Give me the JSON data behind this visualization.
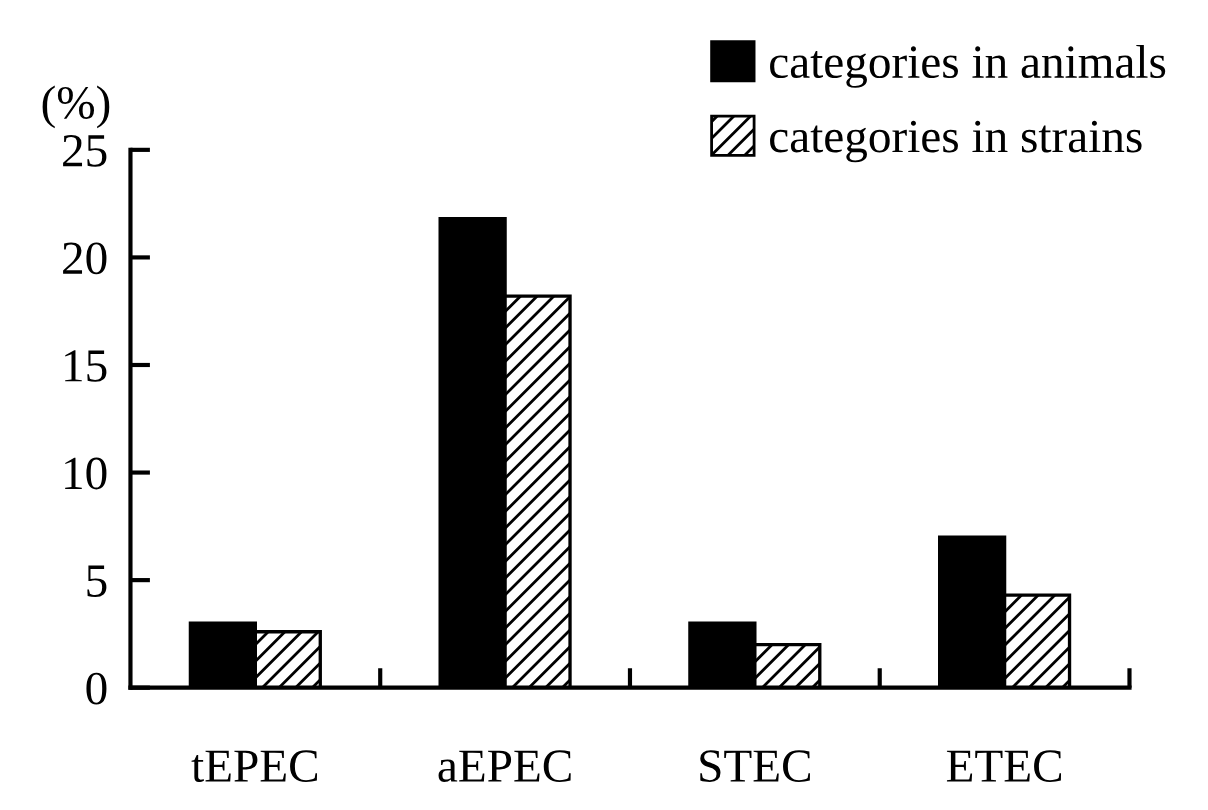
{
  "chart_data": {
    "type": "bar",
    "ylabel": "(%)",
    "categories": [
      "tEPEC",
      "aEPEC",
      "STEC",
      "ETEC"
    ],
    "series": [
      {
        "name": "categories in animals",
        "color": "#000000",
        "values": [
          3.0,
          21.8,
          3.0,
          7.0
        ]
      },
      {
        "name": "categories in strains",
        "color": "#000000",
        "values": [
          2.6,
          18.2,
          2.0,
          4.3
        ]
      }
    ],
    "ylim": [
      0,
      25
    ],
    "yticks": [
      0,
      5,
      10,
      15,
      20,
      25
    ],
    "grid": false,
    "legend": "top right"
  }
}
